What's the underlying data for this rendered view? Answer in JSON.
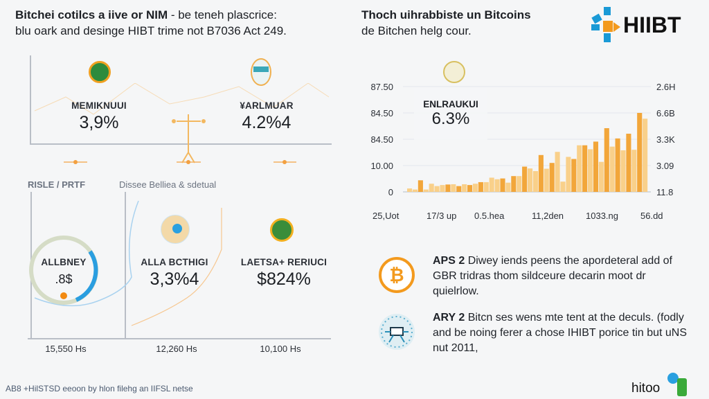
{
  "header_left": {
    "title_bold": "Bitchei cotilcs a iive or NIM",
    "title_rest": " - be teneh plascrice:",
    "subtitle": "blu oark and desinge HIBT trime not B7036 Act 249."
  },
  "header_right": {
    "title": "Thoch uihrabbiste un Bitcoins",
    "subtitle": "de Bitchen helg cour."
  },
  "logo": {
    "text": "HIIBT",
    "colors": [
      "#1a9ad6",
      "#f39a1e"
    ]
  },
  "top_panel": {
    "kpis": [
      {
        "label": "MEMIKNUUI",
        "value": "3,9%"
      },
      {
        "label": "¥ARLMUAR",
        "value": "4.2%4"
      }
    ]
  },
  "sections": {
    "left": "RISLE / PRTF",
    "middle": "Dissee Belliea & sdetual"
  },
  "bottom_panel": {
    "gauge": {
      "label": "ALLBNEY",
      "value": ".8$"
    },
    "kpis": [
      {
        "label": "ALLA BCTHIGI",
        "value": "3,3%4"
      },
      {
        "label": "LAETSA+ RERIUCI",
        "value": "$824%"
      }
    ],
    "x_ticks": [
      "15,550 Hs",
      "12,260 Hs",
      "10,100 Hs"
    ]
  },
  "chart_data": {
    "type": "bar",
    "title": "",
    "card": {
      "label": "ENLRAUKUI",
      "value": "6.3%"
    },
    "y_ticks_left": [
      "0",
      "10.00",
      "84.50",
      "84.50",
      "87.50"
    ],
    "y_ticks_right": [
      "11.8",
      "3.09",
      "3.3K",
      "6.6B",
      "2.6H"
    ],
    "x_ticks": [
      "25,Uot",
      "17/3 up",
      "0.5.hea",
      "11,2den",
      "1033.ng",
      "56.dd"
    ],
    "ylim_gridline_index": [
      0,
      4
    ],
    "grid": true,
    "values": [
      0.13,
      0.09,
      0.44,
      0.09,
      0.31,
      0.22,
      0.26,
      0.28,
      0.29,
      0.22,
      0.29,
      0.26,
      0.31,
      0.37,
      0.37,
      0.54,
      0.48,
      0.51,
      0.35,
      0.6,
      0.6,
      0.96,
      0.89,
      0.79,
      1.4,
      0.88,
      1.1,
      1.52,
      0.39,
      1.33,
      1.25,
      1.77,
      1.77,
      1.62,
      1.91,
      1.14,
      2.42,
      1.72,
      2.03,
      1.58,
      2.21,
      1.6,
      3.0,
      2.78
    ],
    "colors": {
      "dark": "#f2a63a",
      "light": "#f9d08a"
    }
  },
  "notes": [
    {
      "bold": "APS 2",
      "text": " Diwey iends peens the apordeteral add of GBR tridras thom sildceure decarin moot dr quielrlow.",
      "icon": "bitcoin-icon"
    },
    {
      "bold": "ARY 2",
      "text": " Bitcn ses wens mte tent at the deculs. (fodly and be noing ferer a chose IHIBT porice tin but uNS nut 2011,",
      "icon": "network-icon"
    }
  ],
  "footer": {
    "text": "AB8 +HilSTSD eeoon by hlon filehg an IIFSL netse",
    "logo": "hitoo"
  }
}
